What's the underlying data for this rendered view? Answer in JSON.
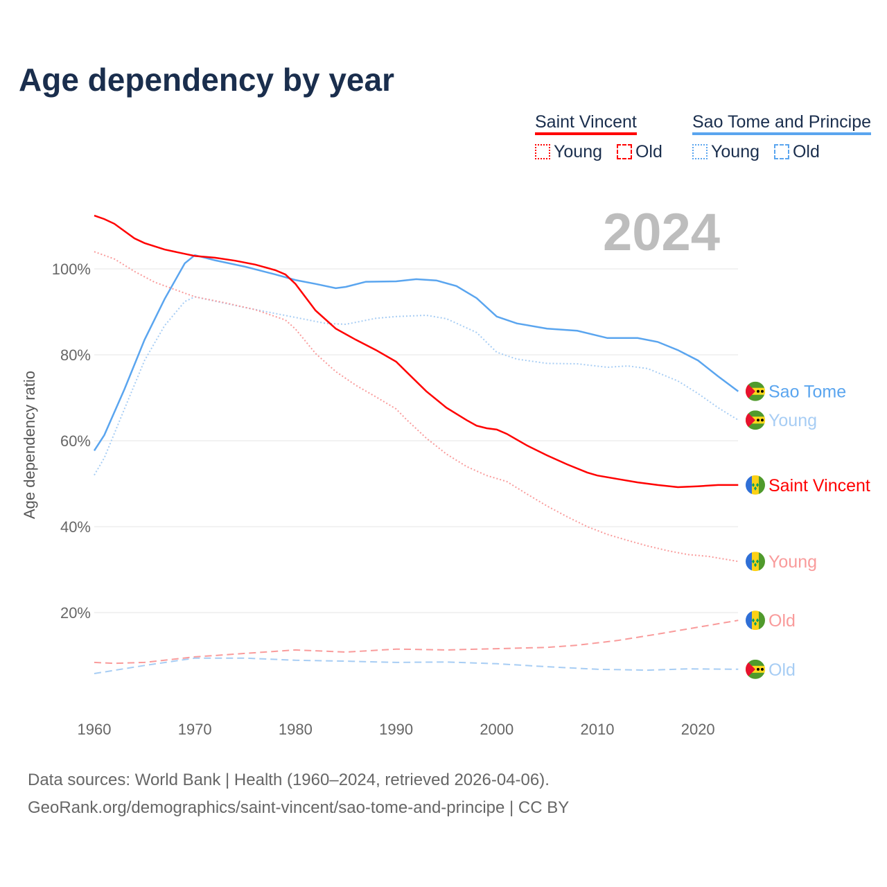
{
  "title": "Age dependency by year",
  "legend": {
    "groups": [
      {
        "name": "Saint Vincent",
        "color": "#ff0000",
        "items": [
          "Young",
          "Old"
        ]
      },
      {
        "name": "Sao Tome and Principe",
        "color": "#5aa5ef",
        "items": [
          "Young",
          "Old"
        ]
      }
    ]
  },
  "year_label": "2024",
  "source": {
    "line1": "Data sources: World Bank | Health (1960–2024, retrieved 2026-04-06).",
    "line2": "GeoRank.org/demographics/saint-vincent/sao-tome-and-principe | CC BY"
  },
  "chart_data": {
    "type": "line",
    "title": "Age dependency by year",
    "xlabel": "",
    "ylabel": "Age dependency ratio",
    "xlim": [
      1960,
      2024
    ],
    "ylim": [
      0,
      115
    ],
    "xticks": [
      "1960",
      "1970",
      "1980",
      "1990",
      "2000",
      "2010",
      "2020"
    ],
    "yticks": [
      "20%",
      "40%",
      "60%",
      "80%",
      "100%"
    ],
    "series": [
      {
        "name": "Sao Tome",
        "country": "stp",
        "color": "#5aa5ef",
        "dash": "solid",
        "end_label": "Sao Tome",
        "x": [
          1960,
          1961,
          1963,
          1965,
          1967,
          1969,
          1970,
          1972,
          1975,
          1978,
          1980,
          1982,
          1984,
          1985,
          1987,
          1990,
          1992,
          1994,
          1996,
          1998,
          2000,
          2002,
          2005,
          2008,
          2011,
          2014,
          2016,
          2018,
          2020,
          2022,
          2024
        ],
        "y": [
          57.7,
          61.3,
          72,
          83.5,
          93,
          101.3,
          103.2,
          102,
          100.5,
          98.7,
          97.4,
          96.5,
          95.5,
          95.8,
          97,
          97.1,
          97.6,
          97.3,
          96,
          93.2,
          88.9,
          87.3,
          86.1,
          85.6,
          83.9,
          83.9,
          83,
          81.1,
          78.7,
          75,
          71.5
        ]
      },
      {
        "name": "Sao Tome Young",
        "country": "stp",
        "color": "#a7cdf4",
        "dash": "dotted",
        "end_label": "Young",
        "x": [
          1960,
          1961,
          1963,
          1965,
          1967,
          1969,
          1970,
          1975,
          1980,
          1983,
          1985,
          1988,
          1990,
          1993,
          1995,
          1998,
          2000,
          2002,
          2005,
          2008,
          2011,
          2013,
          2015,
          2018,
          2020,
          2022,
          2024
        ],
        "y": [
          52,
          56,
          67.4,
          78.7,
          86.8,
          92.4,
          93.5,
          91,
          88.7,
          87.3,
          87.1,
          88.5,
          88.9,
          89.2,
          88.4,
          85.2,
          80.6,
          79,
          78,
          77.9,
          77.1,
          77.4,
          76.8,
          73.9,
          71,
          67.7,
          64.8
        ]
      },
      {
        "name": "Saint Vincent",
        "country": "vct",
        "color": "#ff0000",
        "dash": "solid",
        "end_label": "Saint Vincent",
        "x": [
          1960,
          1961,
          1962,
          1964,
          1965,
          1967,
          1969,
          1970,
          1972,
          1974,
          1976,
          1978,
          1979,
          1980,
          1982,
          1984,
          1986,
          1988,
          1990,
          1991,
          1993,
          1995,
          1997,
          1998,
          1999,
          2000,
          2001,
          2003,
          2005,
          2007,
          2009,
          2010,
          2012,
          2014,
          2016,
          2018,
          2020,
          2022,
          2024
        ],
        "y": [
          112.4,
          111.6,
          110.5,
          107.1,
          106,
          104.5,
          103.5,
          103,
          102.6,
          101.9,
          101,
          99.7,
          98.7,
          96.5,
          90.3,
          86.1,
          83.5,
          81.1,
          78.4,
          76.1,
          71.5,
          67.7,
          64.8,
          63.5,
          62.9,
          62.6,
          61.6,
          58.9,
          56.6,
          54.5,
          52.6,
          51.9,
          51.1,
          50.3,
          49.7,
          49.2,
          49.4,
          49.7,
          49.7
        ]
      },
      {
        "name": "Saint Vincent Young",
        "country": "vct",
        "color": "#f99b9b",
        "dash": "dotted",
        "end_label": "Young",
        "x": [
          1960,
          1962,
          1964,
          1966,
          1968,
          1970,
          1973,
          1976,
          1979,
          1980,
          1982,
          1984,
          1986,
          1988,
          1990,
          1991,
          1993,
          1995,
          1997,
          1999,
          2001,
          2003,
          2005,
          2007,
          2009,
          2011,
          2013,
          2015,
          2017,
          2019,
          2021,
          2024
        ],
        "y": [
          104,
          102.3,
          99.4,
          96.9,
          95.2,
          93.5,
          92.1,
          90.5,
          88.1,
          86,
          80.3,
          76.1,
          72.9,
          70.2,
          67.4,
          65,
          60.6,
          56.9,
          54,
          51.9,
          50.5,
          47.6,
          44.8,
          42.3,
          40,
          38.2,
          36.8,
          35.5,
          34.4,
          33.5,
          33.1,
          31.9
        ]
      },
      {
        "name": "Saint Vincent Old",
        "country": "vct",
        "color": "#f99b9b",
        "dash": "dashed",
        "end_label": "Old",
        "x": [
          1960,
          1962,
          1965,
          1970,
          1975,
          1980,
          1985,
          1990,
          1995,
          2000,
          2005,
          2008,
          2012,
          2016,
          2020,
          2024
        ],
        "y": [
          8.4,
          8.2,
          8.4,
          9.7,
          10.5,
          11.3,
          10.8,
          11.5,
          11.3,
          11.6,
          11.9,
          12.4,
          13.5,
          15,
          16.6,
          18.2
        ]
      },
      {
        "name": "Sao Tome Old",
        "country": "stp",
        "color": "#a7cdf4",
        "dash": "dashed",
        "end_label": "Old",
        "x": [
          1960,
          1965,
          1970,
          1975,
          1980,
          1985,
          1990,
          1995,
          2000,
          2005,
          2010,
          2015,
          2019,
          2024
        ],
        "y": [
          5.8,
          7.7,
          9.4,
          9.4,
          8.9,
          8.7,
          8.4,
          8.5,
          8.1,
          7.4,
          6.8,
          6.6,
          6.9,
          6.8
        ]
      }
    ]
  }
}
